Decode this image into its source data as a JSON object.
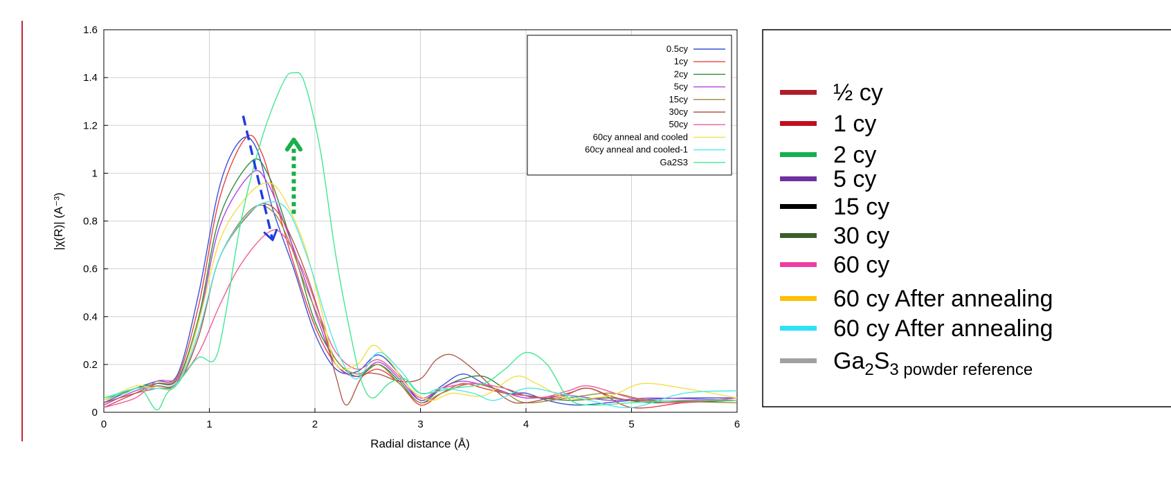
{
  "chart_data": {
    "type": "line",
    "xlabel": "Radial distance    (Å)",
    "ylabel": "|χ(R)|    (A⁻³)",
    "xlim": [
      0,
      6
    ],
    "ylim": [
      0,
      1.6
    ],
    "xticks": [
      "0",
      "1",
      "2",
      "3",
      "4",
      "5",
      "6"
    ],
    "yticks": [
      "0",
      "0.2",
      "0.4",
      "0.6",
      "0.8",
      "1",
      "1.2",
      "1.4",
      "1.6"
    ],
    "grid": true,
    "legend_placement": "top-right",
    "series": [
      {
        "name": "0.5cy",
        "color": "#3a4fd8",
        "points": [
          [
            0,
            0.04
          ],
          [
            0.3,
            0.1
          ],
          [
            0.5,
            0.13
          ],
          [
            0.7,
            0.16
          ],
          [
            0.9,
            0.5
          ],
          [
            1.1,
            0.95
          ],
          [
            1.3,
            1.14
          ],
          [
            1.45,
            1.1
          ],
          [
            1.6,
            0.85
          ],
          [
            1.8,
            0.6
          ],
          [
            2.0,
            0.33
          ],
          [
            2.2,
            0.18
          ],
          [
            2.4,
            0.17
          ],
          [
            2.6,
            0.24
          ],
          [
            2.8,
            0.16
          ],
          [
            3.0,
            0.05
          ],
          [
            3.2,
            0.11
          ],
          [
            3.4,
            0.16
          ],
          [
            3.6,
            0.12
          ],
          [
            3.8,
            0.08
          ],
          [
            4.0,
            0.08
          ],
          [
            4.2,
            0.05
          ],
          [
            4.5,
            0.03
          ],
          [
            5.0,
            0.05
          ],
          [
            5.5,
            0.06
          ],
          [
            6.0,
            0.06
          ]
        ]
      },
      {
        "name": "1cy",
        "color": "#e84040",
        "points": [
          [
            0,
            0.02
          ],
          [
            0.3,
            0.08
          ],
          [
            0.5,
            0.12
          ],
          [
            0.7,
            0.15
          ],
          [
            0.9,
            0.45
          ],
          [
            1.1,
            0.9
          ],
          [
            1.35,
            1.15
          ],
          [
            1.5,
            1.08
          ],
          [
            1.65,
            0.85
          ],
          [
            1.8,
            0.62
          ],
          [
            2.0,
            0.36
          ],
          [
            2.2,
            0.2
          ],
          [
            2.4,
            0.15
          ],
          [
            2.6,
            0.18
          ],
          [
            2.8,
            0.12
          ],
          [
            3.0,
            0.03
          ],
          [
            3.2,
            0.08
          ],
          [
            3.4,
            0.12
          ],
          [
            3.6,
            0.1
          ],
          [
            3.8,
            0.08
          ],
          [
            4.0,
            0.07
          ],
          [
            4.3,
            0.06
          ],
          [
            4.6,
            0.1
          ],
          [
            5.0,
            0.02
          ],
          [
            5.5,
            0.04
          ],
          [
            6.0,
            0.05
          ]
        ]
      },
      {
        "name": "2cy",
        "color": "#2e8b3a",
        "points": [
          [
            0,
            0.05
          ],
          [
            0.3,
            0.1
          ],
          [
            0.5,
            0.12
          ],
          [
            0.7,
            0.14
          ],
          [
            0.9,
            0.4
          ],
          [
            1.1,
            0.82
          ],
          [
            1.4,
            1.05
          ],
          [
            1.55,
            1.0
          ],
          [
            1.7,
            0.82
          ],
          [
            1.85,
            0.6
          ],
          [
            2.0,
            0.38
          ],
          [
            2.2,
            0.22
          ],
          [
            2.4,
            0.15
          ],
          [
            2.6,
            0.2
          ],
          [
            2.8,
            0.13
          ],
          [
            3.0,
            0.04
          ],
          [
            3.2,
            0.1
          ],
          [
            3.4,
            0.14
          ],
          [
            3.6,
            0.15
          ],
          [
            3.8,
            0.1
          ],
          [
            4.0,
            0.07
          ],
          [
            4.4,
            0.05
          ],
          [
            4.8,
            0.06
          ],
          [
            5.2,
            0.04
          ],
          [
            6.0,
            0.05
          ]
        ]
      },
      {
        "name": "5cy",
        "color": "#b040e0",
        "points": [
          [
            0,
            0.03
          ],
          [
            0.3,
            0.09
          ],
          [
            0.5,
            0.11
          ],
          [
            0.7,
            0.13
          ],
          [
            0.9,
            0.38
          ],
          [
            1.1,
            0.78
          ],
          [
            1.4,
            1.0
          ],
          [
            1.55,
            0.96
          ],
          [
            1.7,
            0.8
          ],
          [
            1.9,
            0.56
          ],
          [
            2.05,
            0.36
          ],
          [
            2.2,
            0.2
          ],
          [
            2.4,
            0.15
          ],
          [
            2.6,
            0.21
          ],
          [
            2.8,
            0.14
          ],
          [
            3.0,
            0.05
          ],
          [
            3.2,
            0.1
          ],
          [
            3.4,
            0.13
          ],
          [
            3.7,
            0.1
          ],
          [
            4.0,
            0.06
          ],
          [
            4.4,
            0.07
          ],
          [
            4.8,
            0.05
          ],
          [
            5.2,
            0.06
          ],
          [
            6.0,
            0.05
          ]
        ]
      },
      {
        "name": "15cy",
        "color": "#9a8a3a",
        "points": [
          [
            0,
            0.05
          ],
          [
            0.3,
            0.1
          ],
          [
            0.5,
            0.11
          ],
          [
            0.7,
            0.12
          ],
          [
            0.9,
            0.32
          ],
          [
            1.1,
            0.65
          ],
          [
            1.4,
            0.85
          ],
          [
            1.6,
            0.84
          ],
          [
            1.75,
            0.72
          ],
          [
            1.9,
            0.54
          ],
          [
            2.05,
            0.38
          ],
          [
            2.2,
            0.22
          ],
          [
            2.4,
            0.16
          ],
          [
            2.6,
            0.2
          ],
          [
            2.8,
            0.12
          ],
          [
            3.0,
            0.04
          ],
          [
            3.2,
            0.08
          ],
          [
            3.5,
            0.12
          ],
          [
            3.8,
            0.08
          ],
          [
            4.0,
            0.04
          ],
          [
            4.4,
            0.06
          ],
          [
            4.8,
            0.08
          ],
          [
            5.2,
            0.05
          ],
          [
            6.0,
            0.04
          ]
        ]
      },
      {
        "name": "30cy",
        "color": "#b05a4a",
        "points": [
          [
            0,
            0.04
          ],
          [
            0.3,
            0.08
          ],
          [
            0.5,
            0.1
          ],
          [
            0.7,
            0.12
          ],
          [
            0.9,
            0.32
          ],
          [
            1.1,
            0.65
          ],
          [
            1.4,
            0.84
          ],
          [
            1.55,
            0.87
          ],
          [
            1.7,
            0.8
          ],
          [
            1.9,
            0.6
          ],
          [
            2.05,
            0.4
          ],
          [
            2.2,
            0.15
          ],
          [
            2.3,
            0.03
          ],
          [
            2.45,
            0.15
          ],
          [
            2.6,
            0.16
          ],
          [
            2.8,
            0.13
          ],
          [
            3.0,
            0.14
          ],
          [
            3.15,
            0.22
          ],
          [
            3.3,
            0.24
          ],
          [
            3.5,
            0.18
          ],
          [
            3.8,
            0.06
          ],
          [
            4.0,
            0.04
          ],
          [
            4.4,
            0.08
          ],
          [
            4.6,
            0.1
          ],
          [
            5.0,
            0.05
          ],
          [
            6.0,
            0.05
          ]
        ]
      },
      {
        "name": "50cy",
        "color": "#f05a9a",
        "points": [
          [
            0,
            0.02
          ],
          [
            0.3,
            0.06
          ],
          [
            0.5,
            0.13
          ],
          [
            0.7,
            0.14
          ],
          [
            0.9,
            0.25
          ],
          [
            1.1,
            0.45
          ],
          [
            1.3,
            0.62
          ],
          [
            1.55,
            0.75
          ],
          [
            1.7,
            0.74
          ],
          [
            1.9,
            0.58
          ],
          [
            2.05,
            0.4
          ],
          [
            2.2,
            0.25
          ],
          [
            2.4,
            0.18
          ],
          [
            2.6,
            0.22
          ],
          [
            2.8,
            0.15
          ],
          [
            3.0,
            0.06
          ],
          [
            3.2,
            0.1
          ],
          [
            3.5,
            0.12
          ],
          [
            3.8,
            0.1
          ],
          [
            4.1,
            0.06
          ],
          [
            4.4,
            0.09
          ],
          [
            4.6,
            0.11
          ],
          [
            5.0,
            0.06
          ],
          [
            5.4,
            0.04
          ],
          [
            6.0,
            0.06
          ]
        ]
      },
      {
        "name": "60cy anneal and cooled",
        "color": "#f2e040",
        "points": [
          [
            0,
            0.05
          ],
          [
            0.3,
            0.11
          ],
          [
            0.5,
            0.1
          ],
          [
            0.7,
            0.12
          ],
          [
            0.9,
            0.38
          ],
          [
            1.1,
            0.72
          ],
          [
            1.35,
            0.9
          ],
          [
            1.55,
            0.96
          ],
          [
            1.7,
            0.9
          ],
          [
            1.9,
            0.7
          ],
          [
            2.05,
            0.45
          ],
          [
            2.2,
            0.2
          ],
          [
            2.4,
            0.2
          ],
          [
            2.55,
            0.28
          ],
          [
            2.7,
            0.22
          ],
          [
            2.9,
            0.1
          ],
          [
            3.1,
            0.05
          ],
          [
            3.3,
            0.08
          ],
          [
            3.6,
            0.07
          ],
          [
            3.9,
            0.15
          ],
          [
            4.1,
            0.12
          ],
          [
            4.4,
            0.06
          ],
          [
            4.8,
            0.07
          ],
          [
            5.1,
            0.12
          ],
          [
            5.5,
            0.1
          ],
          [
            6.0,
            0.06
          ]
        ]
      },
      {
        "name": "60cy anneal and cooled-1",
        "color": "#50e8e8",
        "points": [
          [
            0,
            0.06
          ],
          [
            0.3,
            0.1
          ],
          [
            0.5,
            0.1
          ],
          [
            0.7,
            0.12
          ],
          [
            0.9,
            0.34
          ],
          [
            1.1,
            0.65
          ],
          [
            1.35,
            0.82
          ],
          [
            1.55,
            0.88
          ],
          [
            1.75,
            0.84
          ],
          [
            1.95,
            0.62
          ],
          [
            2.1,
            0.4
          ],
          [
            2.25,
            0.22
          ],
          [
            2.4,
            0.14
          ],
          [
            2.6,
            0.25
          ],
          [
            2.8,
            0.18
          ],
          [
            3.0,
            0.08
          ],
          [
            3.2,
            0.1
          ],
          [
            3.5,
            0.08
          ],
          [
            3.7,
            0.05
          ],
          [
            4.0,
            0.1
          ],
          [
            4.3,
            0.08
          ],
          [
            4.6,
            0.05
          ],
          [
            5.0,
            0.02
          ],
          [
            5.5,
            0.08
          ],
          [
            6.0,
            0.09
          ]
        ]
      },
      {
        "name": "Ga2S3",
        "color": "#40e890",
        "points": [
          [
            0,
            0.06
          ],
          [
            0.2,
            0.08
          ],
          [
            0.35,
            0.1
          ],
          [
            0.5,
            0.01
          ],
          [
            0.6,
            0.08
          ],
          [
            0.75,
            0.15
          ],
          [
            0.9,
            0.23
          ],
          [
            1.05,
            0.22
          ],
          [
            1.15,
            0.4
          ],
          [
            1.3,
            0.8
          ],
          [
            1.5,
            1.15
          ],
          [
            1.7,
            1.38
          ],
          [
            1.8,
            1.42
          ],
          [
            1.9,
            1.38
          ],
          [
            2.05,
            1.1
          ],
          [
            2.2,
            0.65
          ],
          [
            2.35,
            0.3
          ],
          [
            2.45,
            0.12
          ],
          [
            2.55,
            0.06
          ],
          [
            2.7,
            0.12
          ],
          [
            2.85,
            0.14
          ],
          [
            3.0,
            0.08
          ],
          [
            3.3,
            0.1
          ],
          [
            3.6,
            0.12
          ],
          [
            3.8,
            0.18
          ],
          [
            4.0,
            0.25
          ],
          [
            4.2,
            0.2
          ],
          [
            4.4,
            0.06
          ],
          [
            4.6,
            0.03
          ],
          [
            5.0,
            0.04
          ],
          [
            5.5,
            0.05
          ],
          [
            6.0,
            0.05
          ]
        ]
      }
    ],
    "annotations": [
      {
        "type": "dashed-arrow",
        "color": "#1f3de0",
        "from": [
          1.32,
          1.24
        ],
        "to": [
          1.6,
          0.72
        ]
      },
      {
        "type": "dotted-arrow",
        "color": "#18b04a",
        "from": [
          1.8,
          0.83
        ],
        "to": [
          1.8,
          1.14
        ]
      }
    ],
    "outer_legend": [
      {
        "label": "½ cy",
        "color": "#b01c2a"
      },
      {
        "label": "1 cy",
        "color": "#c0101c"
      },
      {
        "label": "2 cy",
        "color": "#14b04c"
      },
      {
        "label": "5 cy",
        "color": "#7030a0"
      },
      {
        "label": "15 cy",
        "color": "#000000"
      },
      {
        "label": "30 cy",
        "color": "#386028"
      },
      {
        "label": "60 cy",
        "color": "#f03ca0"
      },
      {
        "label": "60 cy After annealing",
        "color": "#ffc000"
      },
      {
        "label": "60 cy After annealing",
        "color": "#30e0f8"
      },
      {
        "label": "Ga",
        "sub1": "2",
        "mid": "S",
        "sub2": "3 powder reference",
        "color": "#a0a0a0"
      }
    ]
  }
}
